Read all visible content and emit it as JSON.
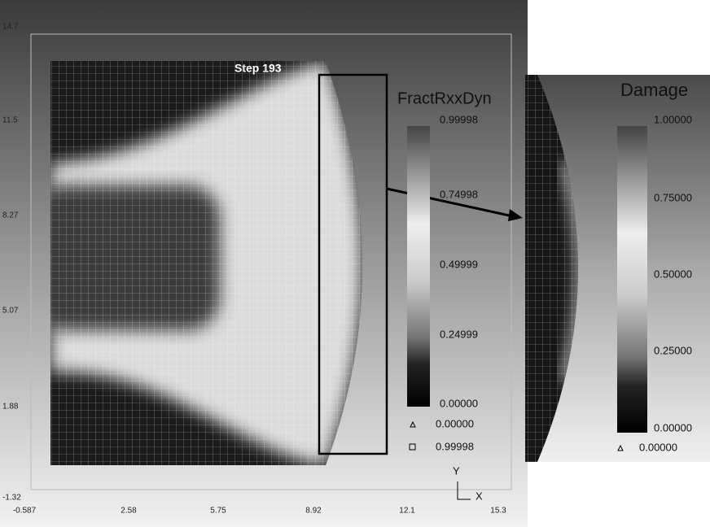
{
  "left_panel": {
    "step_label": "Step 193",
    "y_ticks": [
      "14.7",
      "11.5",
      "8.27",
      "5.07",
      "1.88",
      "-1.32"
    ],
    "x_ticks": [
      "-0.587",
      "2.58",
      "5.75",
      "8.92",
      "12.1",
      "15.3"
    ],
    "legend": {
      "title": "FractRxxDyn",
      "levels": [
        "0.99998",
        "0.74998",
        "0.49999",
        "0.24999",
        "0.00000"
      ],
      "min_marker": "0.00000",
      "max_marker": "0.99998"
    },
    "triad": {
      "y": "Y",
      "x": "X"
    }
  },
  "right_panel": {
    "legend": {
      "title": "Damage",
      "levels": [
        "1.00000",
        "0.75000",
        "0.50000",
        "0.25000",
        "0.00000"
      ],
      "min_marker": "0.00000"
    }
  }
}
